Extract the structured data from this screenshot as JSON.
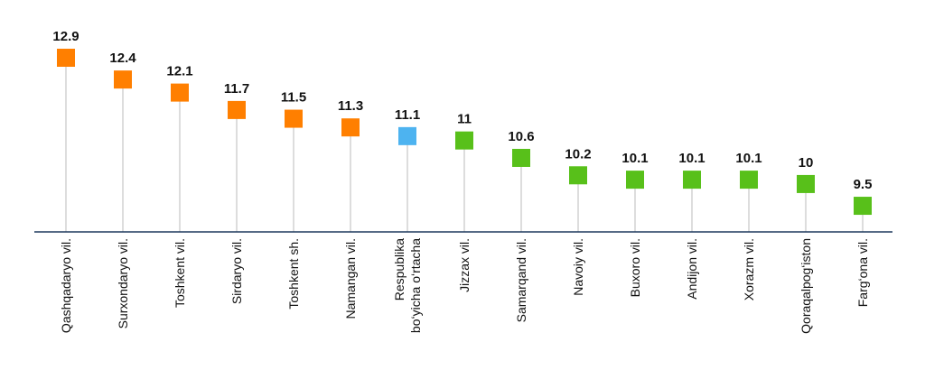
{
  "chart_data": {
    "type": "scatter",
    "title": "",
    "xlabel": "",
    "ylabel": "",
    "categories": [
      "Qashqadaryo vil.",
      "Surxondaryo vil.",
      "Toshkent vil.",
      "Sirdaryo vil.",
      "Toshkent sh.",
      "Namangan vil.",
      "Respublika bo‘yicha o‘rtacha",
      "Jizzax vil.",
      "Samarqand vil.",
      "Navoiy vil.",
      "Buxoro vil.",
      "Andijon vil.",
      "Xorazm vil.",
      "Qoraqalpog‘iston",
      "Farg‘ona vil."
    ],
    "values": [
      12.9,
      12.4,
      12.1,
      11.7,
      11.5,
      11.3,
      11.1,
      11,
      10.6,
      10.2,
      10.1,
      10.1,
      10.1,
      10,
      9.5
    ],
    "value_labels": [
      "12.9",
      "12.4",
      "12.1",
      "11.7",
      "11.5",
      "11.3",
      "11.1",
      "11",
      "10.6",
      "10.2",
      "10.1",
      "10.1",
      "10.1",
      "10",
      "9.5"
    ],
    "marker_colors": [
      "#FF7F00",
      "#FF7F00",
      "#FF7F00",
      "#FF7F00",
      "#FF7F00",
      "#FF7F00",
      "#4DB3F0",
      "#58C01A",
      "#58C01A",
      "#58C01A",
      "#58C01A",
      "#58C01A",
      "#58C01A",
      "#58C01A",
      "#58C01A"
    ],
    "ylim": [
      8.9,
      12.9
    ],
    "grid": false,
    "legend": "none",
    "stem_color": "#bbbbbb",
    "axis_color": "#1f3a5f"
  }
}
